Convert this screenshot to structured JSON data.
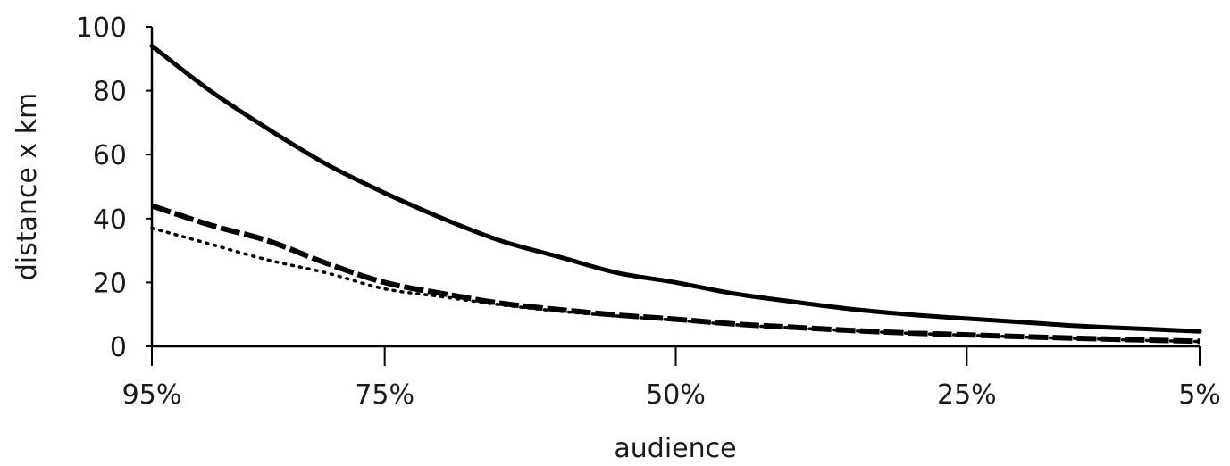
{
  "chart_data": {
    "type": "line",
    "title": "",
    "xlabel": "audience",
    "ylabel": "distance x km",
    "ylim": [
      0,
      100
    ],
    "xlim": [
      95,
      5
    ],
    "x_reversed": true,
    "y_ticks": [
      "0",
      "20",
      "40",
      "60",
      "80",
      "100"
    ],
    "x_ticks": [
      {
        "x": 95,
        "label": "95%"
      },
      {
        "x": 75,
        "label": "75%"
      },
      {
        "x": 50,
        "label": "50%"
      },
      {
        "x": 25,
        "label": "25%"
      },
      {
        "x": 5,
        "label": "5%"
      }
    ],
    "grid": false,
    "legend": "none",
    "series": [
      {
        "style": "solid",
        "color": "#000000",
        "x": [
          95,
          90,
          85,
          80,
          75,
          70,
          65,
          60,
          55,
          50,
          45,
          40,
          35,
          30,
          25,
          20,
          15,
          10,
          5
        ],
        "y": [
          94,
          80,
          68,
          57,
          48,
          40,
          33,
          28,
          23,
          20,
          16.5,
          14,
          11.7,
          10,
          8.7,
          7.5,
          6.3,
          5.5,
          4.7
        ]
      },
      {
        "style": "dashed",
        "color": "#000000",
        "x": [
          95,
          90,
          85,
          80,
          75,
          70,
          65,
          60,
          55,
          50,
          45,
          40,
          35,
          30,
          25,
          20,
          15,
          10,
          5
        ],
        "y": [
          44,
          38,
          33,
          26,
          20,
          16.5,
          13.5,
          11.5,
          9.8,
          8.5,
          7,
          6,
          5,
          4.2,
          3.6,
          3,
          2.5,
          2,
          1.6
        ]
      },
      {
        "style": "dotted",
        "color": "#000000",
        "x": [
          95,
          90,
          85,
          80,
          75,
          70,
          65,
          60,
          55,
          50,
          45,
          40,
          35,
          30,
          25,
          20,
          15,
          10,
          5
        ],
        "y": [
          37,
          32,
          27,
          23,
          18,
          15.5,
          13,
          11,
          9.5,
          8.2,
          6.8,
          5.8,
          4.9,
          4.1,
          3.5,
          2.9,
          2.4,
          1.9,
          1.5
        ]
      }
    ]
  }
}
